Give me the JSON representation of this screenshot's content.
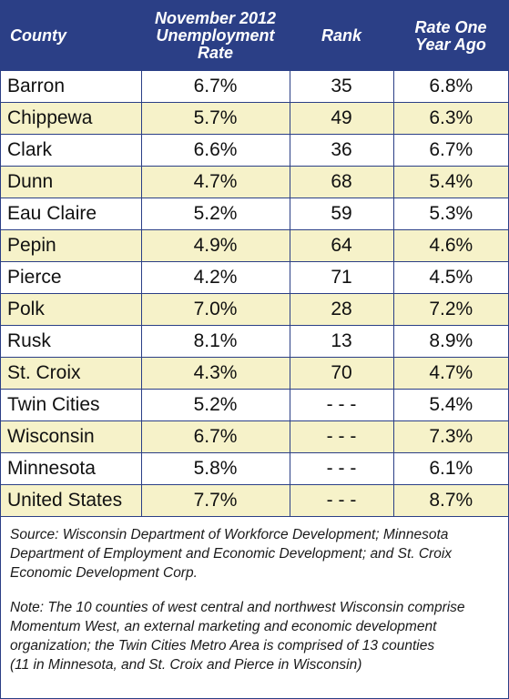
{
  "table": {
    "headers": {
      "county": "County",
      "rate": [
        "November 2012",
        "Unemployment",
        "Rate"
      ],
      "rank": "Rank",
      "prior": [
        "Rate One",
        "Year Ago"
      ]
    },
    "rows": [
      {
        "county": "Barron",
        "rate": "6.7%",
        "rank": "35",
        "prior": "6.8%"
      },
      {
        "county": "Chippewa",
        "rate": "5.7%",
        "rank": "49",
        "prior": "6.3%"
      },
      {
        "county": "Clark",
        "rate": "6.6%",
        "rank": "36",
        "prior": "6.7%"
      },
      {
        "county": "Dunn",
        "rate": "4.7%",
        "rank": "68",
        "prior": "5.4%"
      },
      {
        "county": "Eau Claire",
        "rate": "5.2%",
        "rank": "59",
        "prior": "5.3%"
      },
      {
        "county": "Pepin",
        "rate": "4.9%",
        "rank": "64",
        "prior": "4.6%"
      },
      {
        "county": "Pierce",
        "rate": "4.2%",
        "rank": "71",
        "prior": "4.5%"
      },
      {
        "county": "Polk",
        "rate": "7.0%",
        "rank": "28",
        "prior": "7.2%"
      },
      {
        "county": "Rusk",
        "rate": "8.1%",
        "rank": "13",
        "prior": "8.9%"
      },
      {
        "county": "St. Croix",
        "rate": "4.3%",
        "rank": "70",
        "prior": "4.7%"
      },
      {
        "county": "Twin Cities",
        "rate": "5.2%",
        "rank": "- - -",
        "prior": "5.4%"
      },
      {
        "county": "Wisconsin",
        "rate": "6.7%",
        "rank": "- - -",
        "prior": "7.3%"
      },
      {
        "county": "Minnesota",
        "rate": "5.8%",
        "rank": "- - -",
        "prior": "6.1%"
      },
      {
        "county": "United States",
        "rate": "7.7%",
        "rank": "- - -",
        "prior": "8.7%"
      }
    ]
  },
  "source": [
    "Source: Wisconsin Department of Workforce Development; Minnesota",
    "Department of Employment and Economic Development; and St. Croix",
    "Economic Development Corp."
  ],
  "note": [
    "Note: The 10 counties of west central and northwest Wisconsin comprise",
    "Momentum West, an external marketing and economic development",
    "organization; the Twin Cities Metro Area is comprised of 13 counties",
    "(11 in Minnesota, and St. Croix and Pierce in Wisconsin)"
  ],
  "colors": {
    "header_bg": "#2b3f86",
    "shade_bg": "#f6f2c9"
  }
}
